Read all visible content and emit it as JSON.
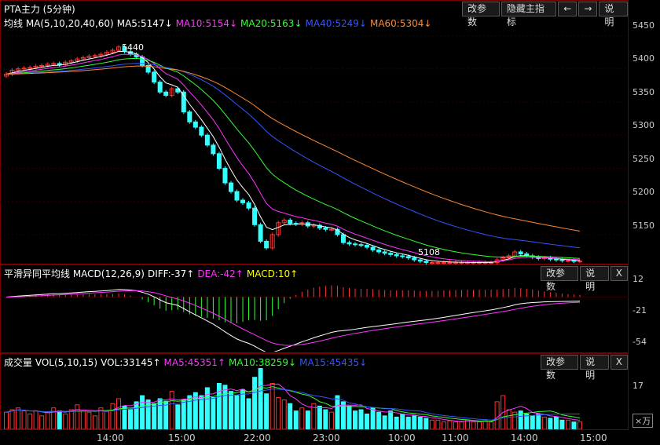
{
  "main": {
    "title": "PTA主力 (5分钟)",
    "buttons": [
      "改参数",
      "隐藏主指标",
      "←",
      "→",
      "说明"
    ],
    "legend": [
      {
        "text": "均线 MA(5,10,20,40,60)",
        "color": "#ffffff"
      },
      {
        "text": "MA5:5147↓",
        "color": "#ffffff"
      },
      {
        "text": "MA10:5154↓",
        "color": "#ff33ff"
      },
      {
        "text": "MA20:5163↓",
        "color": "#33ff33"
      },
      {
        "text": "MA40:5249↓",
        "color": "#3355ff"
      },
      {
        "text": "MA60:5304↓",
        "color": "#ff8833"
      }
    ],
    "y_ticks": [
      "5450",
      "5400",
      "5350",
      "5300",
      "5250",
      "5200",
      "5150"
    ],
    "annotations": [
      "5440",
      "5108"
    ]
  },
  "macd": {
    "legend": [
      {
        "text": "平滑异同平均线 MACD(12,26,9)",
        "color": "#ffffff"
      },
      {
        "text": "DIFF:-37↑",
        "color": "#ffffff"
      },
      {
        "text": "DEA:-42↑",
        "color": "#ff33ff"
      },
      {
        "text": "MACD:10↑",
        "color": "#ffff00"
      }
    ],
    "buttons": [
      "改参数",
      "说明",
      "X"
    ],
    "y_ticks": [
      "12",
      "-21",
      "-54"
    ]
  },
  "vol": {
    "legend": [
      {
        "text": "成交量 VOL(5,10,15)",
        "color": "#ffffff"
      },
      {
        "text": "VOL:33145↑",
        "color": "#ffffff"
      },
      {
        "text": "MA5:45351↑",
        "color": "#ff33ff"
      },
      {
        "text": "MA10:38259↓",
        "color": "#33ff33"
      },
      {
        "text": "MA15:45435↓",
        "color": "#3355ff"
      }
    ],
    "buttons": [
      "改参数",
      "说明",
      "X"
    ],
    "y_ticks": [
      "17"
    ],
    "unit": "×万"
  },
  "x_ticks": [
    "14:00",
    "15:00",
    "22:00",
    "23:00",
    "10:00",
    "11:00",
    "14:00",
    "15:00"
  ],
  "colors": {
    "up": "#ff3333",
    "down": "#33ffff",
    "ma5": "#ffffff",
    "ma10": "#ff33ff",
    "ma20": "#33ff33",
    "ma40": "#3355ff",
    "ma60": "#ff8833"
  },
  "chart_data": {
    "type": "candlestick",
    "y_range": [
      5105,
      5460
    ],
    "closes": [
      5392,
      5398,
      5400,
      5401,
      5402,
      5404,
      5405,
      5407,
      5408,
      5406,
      5410,
      5412,
      5415,
      5417,
      5419,
      5420,
      5422,
      5425,
      5428,
      5433,
      5426,
      5422,
      5418,
      5405,
      5395,
      5380,
      5365,
      5360,
      5370,
      5365,
      5335,
      5320,
      5312,
      5300,
      5285,
      5272,
      5250,
      5228,
      5215,
      5202,
      5198,
      5190,
      5165,
      5140,
      5130,
      5150,
      5168,
      5172,
      5167,
      5166,
      5168,
      5163,
      5164,
      5160,
      5158,
      5158,
      5150,
      5138,
      5136,
      5135,
      5134,
      5131,
      5127,
      5124,
      5122,
      5120,
      5118,
      5117,
      5115,
      5112,
      5110,
      5108,
      5108,
      5108,
      5108,
      5108,
      5108,
      5108,
      5108,
      5108,
      5108,
      5108,
      5108,
      5112,
      5115,
      5118,
      5124,
      5121,
      5118,
      5116,
      5114,
      5115,
      5113,
      5112,
      5111,
      5111,
      5110,
      5110
    ],
    "vol": [
      0.28,
      0.32,
      0.35,
      0.3,
      0.25,
      0.3,
      0.22,
      0.28,
      0.35,
      0.3,
      0.25,
      0.32,
      0.4,
      0.3,
      0.28,
      0.22,
      0.35,
      0.3,
      0.42,
      0.5,
      0.38,
      0.32,
      0.45,
      0.55,
      0.48,
      0.42,
      0.5,
      0.46,
      0.62,
      0.4,
      0.48,
      0.55,
      0.6,
      0.55,
      0.68,
      0.52,
      0.75,
      0.72,
      0.62,
      0.55,
      0.65,
      0.5,
      0.85,
      1.0,
      0.58,
      0.75,
      0.52,
      0.48,
      0.42,
      0.3,
      0.35,
      0.3,
      0.42,
      0.38,
      0.32,
      0.28,
      0.55,
      0.45,
      0.38,
      0.3,
      0.32,
      0.25,
      0.35,
      0.28,
      0.22,
      0.3,
      0.2,
      0.25,
      0.2,
      0.22,
      0.2,
      0.18,
      0.15,
      0.15,
      0.12,
      0.14,
      0.12,
      0.12,
      0.15,
      0.12,
      0.12,
      0.14,
      0.12,
      0.45,
      0.55,
      0.32,
      0.28,
      0.3,
      0.25,
      0.22,
      0.25,
      0.2,
      0.18,
      0.2,
      0.15,
      0.15,
      0.12,
      0.12
    ],
    "macd_range": [
      -62,
      20
    ],
    "vol_range": [
      0,
      30
    ]
  }
}
